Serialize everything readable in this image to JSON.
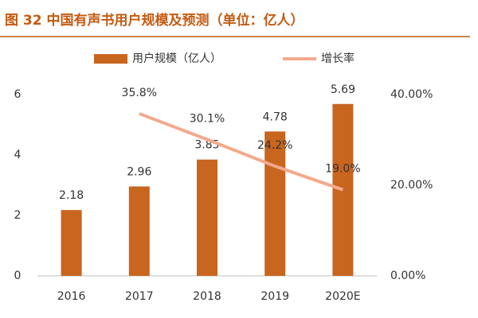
{
  "chart_data": {
    "type": "bar",
    "title": "图 32 中国有声书用户规模及预测（单位：亿人）",
    "categories": [
      "2016",
      "2017",
      "2018",
      "2019",
      "2020E"
    ],
    "series": [
      {
        "name": "用户规模（亿人）",
        "type": "bar",
        "color": "#c8651f",
        "values": [
          2.18,
          2.96,
          3.85,
          4.78,
          5.69
        ]
      },
      {
        "name": "增长率",
        "type": "line",
        "axis": "y2",
        "color": "#f3a98c",
        "values": [
          null,
          35.8,
          30.1,
          24.2,
          19.0
        ],
        "value_labels": [
          null,
          "35.8%",
          "30.1%",
          "24.2%",
          "19.0%"
        ]
      }
    ],
    "ylim": [
      0,
      6
    ],
    "yticks": [
      0,
      2,
      4,
      6
    ],
    "y2lim": [
      0,
      40
    ],
    "y2ticks": [
      {
        "value": 0,
        "label": "0.00%"
      },
      {
        "value": 20,
        "label": "20.00%"
      },
      {
        "value": 40,
        "label": "40.00%"
      }
    ],
    "grid": false,
    "legend": "top"
  }
}
